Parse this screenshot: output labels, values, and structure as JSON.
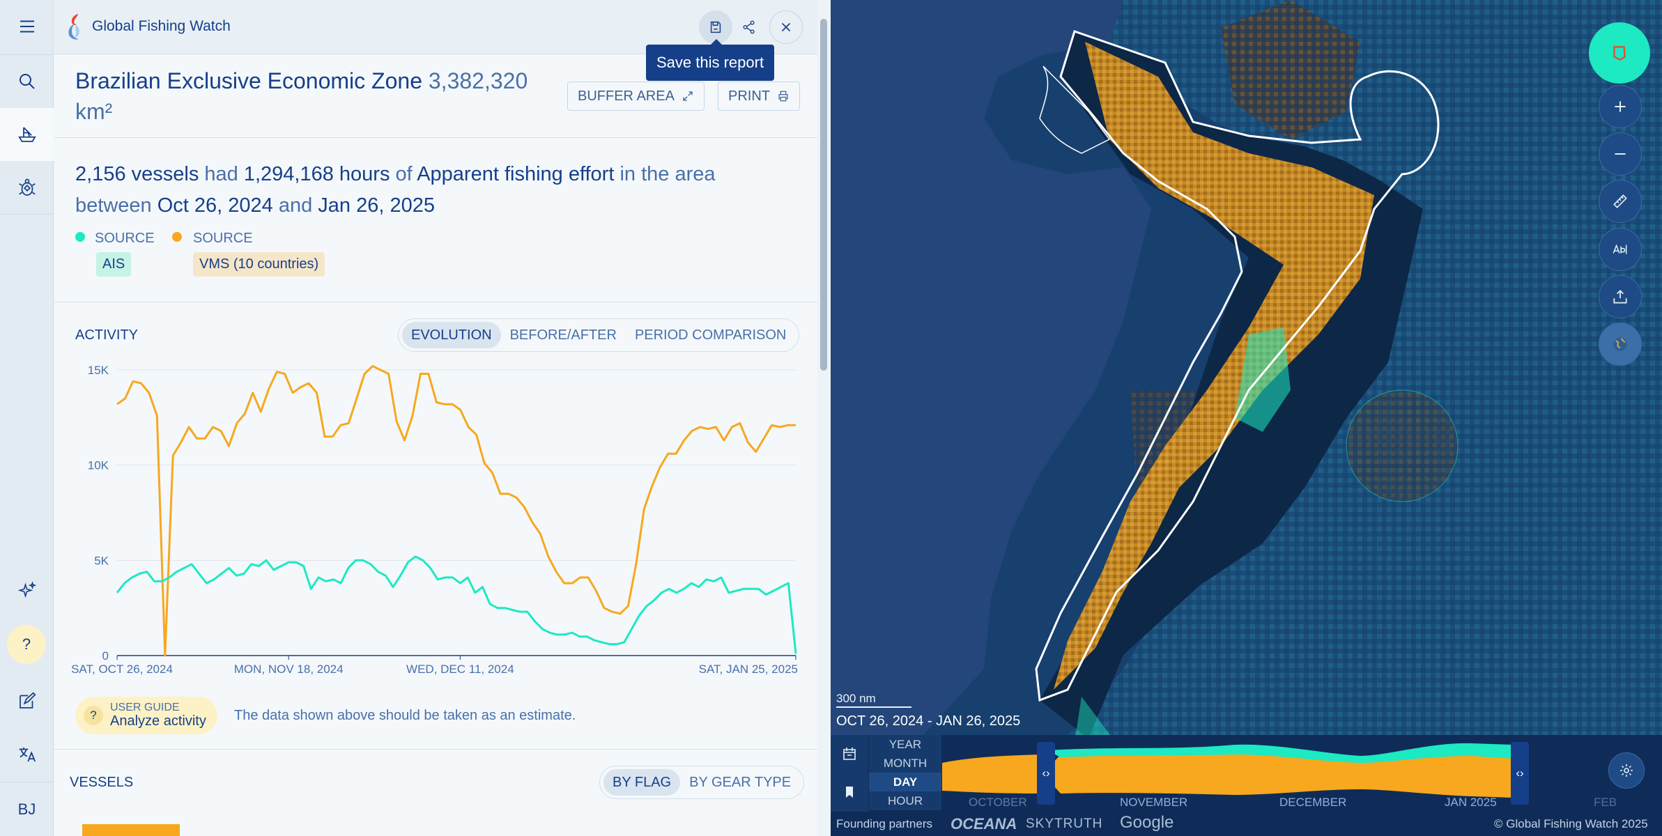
{
  "app": {
    "name": "Global Fishing Watch"
  },
  "tooltip": {
    "save": "Save this report"
  },
  "report": {
    "title": "Brazilian Exclusive Economic Zone",
    "area": "3,382,320 km²",
    "buffer_label": "BUFFER AREA",
    "print_label": "PRINT"
  },
  "summary": {
    "vessels": "2,156 vessels",
    "had": "had",
    "hours": "1,294,168 hours",
    "of": "of",
    "dataset": "Apparent fishing effort",
    "in_area": "in the area between",
    "start": "Oct 26, 2024",
    "and": "and",
    "end": "Jan 26, 2025"
  },
  "sources": [
    {
      "label": "SOURCE",
      "badge": "AIS",
      "color": "#1de9c2"
    },
    {
      "label": "SOURCE",
      "badge": "VMS (10 countries)",
      "color": "#f7a81e"
    }
  ],
  "activity": {
    "label": "ACTIVITY",
    "tabs": [
      "EVOLUTION",
      "BEFORE/AFTER",
      "PERIOD COMPARISON"
    ],
    "active_tab": "EVOLUTION"
  },
  "guide": {
    "kicker": "USER GUIDE",
    "title": "Analyze activity"
  },
  "estimate_note": "The data shown above should be taken as an estimate.",
  "vessels": {
    "label": "VESSELS",
    "tabs": [
      "BY FLAG",
      "BY GEAR TYPE"
    ],
    "active_tab": "BY FLAG"
  },
  "user": {
    "initials": "BJ"
  },
  "help": {
    "label": "?"
  },
  "map": {
    "scale": "300 nm",
    "date_range": "OCT 26, 2024 - JAN 26, 2025",
    "resolutions": [
      "YEAR",
      "MONTH",
      "DAY",
      "HOUR"
    ],
    "active_resolution": "DAY",
    "months": [
      "OCTOBER",
      "NOVEMBER",
      "DECEMBER",
      "JAN 2025",
      "FEB"
    ],
    "partners_label": "Founding partners",
    "partners": [
      "OCEANA",
      "SKYTRUTH",
      "Google"
    ],
    "copyright": "© Global Fishing Watch 2025"
  },
  "colors": {
    "navy": "#163f89",
    "ais": "#1de9c2",
    "vms": "#f7a81e",
    "ocean": "#163a6b"
  },
  "chart_data": {
    "type": "line",
    "y_ticks": [
      "15K",
      "10K",
      "5K",
      "0"
    ],
    "x_ticks": [
      "SAT, OCT 26, 2024",
      "MON, NOV 18, 2024",
      "WED, DEC 11, 2024",
      "SAT, JAN 25, 2025"
    ],
    "ylim": [
      0,
      15000
    ],
    "xlim": [
      0,
      91
    ],
    "grid": true,
    "series": [
      {
        "name": "VMS (10 countries)",
        "color": "#f7a81e",
        "values": [
          13200,
          13500,
          14400,
          14300,
          13800,
          12600,
          0,
          10500,
          11200,
          12000,
          11400,
          11400,
          12000,
          11800,
          11000,
          12200,
          12700,
          13800,
          12800,
          14000,
          14900,
          14800,
          13800,
          14100,
          14300,
          13800,
          11500,
          11500,
          12100,
          12200,
          13500,
          14800,
          15200,
          15000,
          14800,
          12300,
          11300,
          12600,
          14800,
          14800,
          13300,
          13200,
          13200,
          12900,
          12000,
          11600,
          10100,
          9600,
          8500,
          8500,
          8300,
          7800,
          7000,
          6400,
          5200,
          4400,
          3800,
          3800,
          4100,
          4100,
          3400,
          2500,
          2300,
          2200,
          2600,
          4800,
          7700,
          8900,
          9900,
          10600,
          10600,
          11300,
          11800,
          12000,
          11900,
          12000,
          11300,
          12000,
          12200,
          11200,
          10700,
          11400,
          12100,
          12000,
          12100,
          12100
        ]
      },
      {
        "name": "AIS",
        "color": "#1de9c2",
        "values": [
          3300,
          3800,
          4100,
          4300,
          4400,
          3900,
          3900,
          4100,
          4400,
          4600,
          4800,
          4300,
          3800,
          4000,
          4300,
          4600,
          4200,
          4300,
          4800,
          4700,
          5000,
          4500,
          4700,
          4900,
          4900,
          4700,
          3500,
          4100,
          3900,
          4000,
          3800,
          4600,
          5000,
          5000,
          4800,
          4400,
          4200,
          3600,
          4200,
          4900,
          5200,
          5000,
          4600,
          4000,
          4100,
          4100,
          3800,
          4100,
          3300,
          3600,
          2700,
          2500,
          2500,
          2400,
          2300,
          2300,
          1800,
          1400,
          1200,
          1100,
          1100,
          1200,
          1000,
          1000,
          800,
          700,
          600,
          600,
          700,
          1400,
          2100,
          2600,
          2900,
          3300,
          3500,
          3300,
          3500,
          3800,
          3600,
          4000,
          3900,
          4100,
          3300,
          3400,
          3500,
          3500,
          3500,
          3200,
          3400,
          3600,
          3800,
          100
        ]
      }
    ]
  }
}
